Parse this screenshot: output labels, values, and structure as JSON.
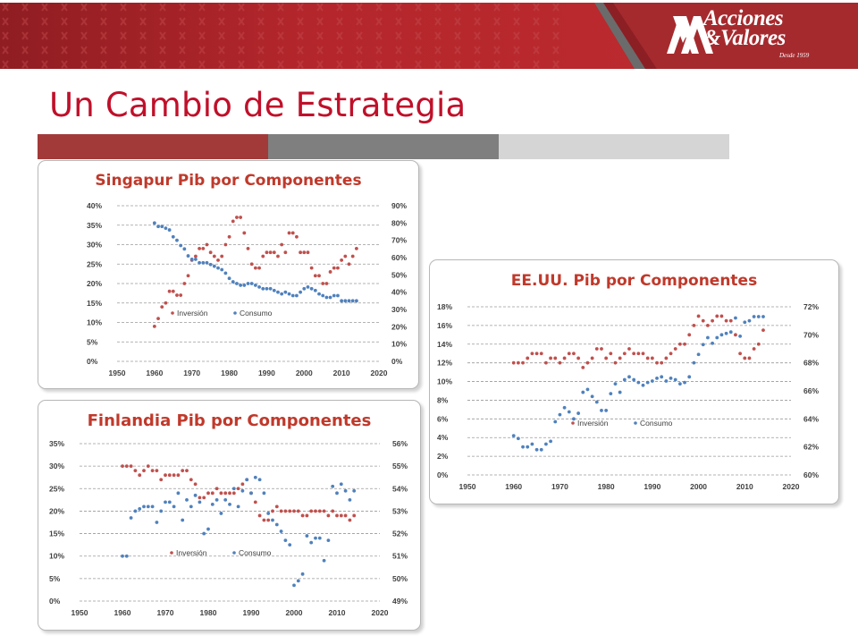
{
  "header": {
    "title": "Un Cambio de Estrategia"
  },
  "brand": {
    "logo_line1": "Acciones",
    "logo_line2": "&Valores",
    "logo_tagline": "Desde 1959"
  },
  "colors": {
    "title": "#c0102a",
    "banner_dark": "#8f1d22",
    "banner_light": "#bf2c30",
    "strip_1": "#a33a3a",
    "strip_2": "#7f7f7f",
    "strip_3": "#d5d5d5",
    "chart_title": "#c0392b",
    "inversion": "#c0504d",
    "consumo": "#4f81bd"
  },
  "chart_data": [
    {
      "id": "singapur",
      "type": "scatter",
      "title": "Singapur Pib por Componentes",
      "x_range": [
        1950,
        2020
      ],
      "x_ticks": [
        1950,
        1960,
        1970,
        1980,
        1990,
        2000,
        2010,
        2020
      ],
      "y_left": {
        "range": [
          0,
          40
        ],
        "ticks": [
          0,
          5,
          10,
          15,
          20,
          25,
          30,
          35,
          40
        ],
        "tick_labels": [
          "0%",
          "5%",
          "10%",
          "15%",
          "20%",
          "25%",
          "30%",
          "35%",
          "40%"
        ]
      },
      "y_right": {
        "range": [
          0,
          90
        ],
        "ticks": [
          0,
          10,
          20,
          30,
          40,
          50,
          60,
          70,
          80,
          90
        ],
        "tick_labels": [
          "0%",
          "10%",
          "20%",
          "30%",
          "40%",
          "50%",
          "60%",
          "70%",
          "80%",
          "90%"
        ]
      },
      "grid": true,
      "legend": "center",
      "series": [
        {
          "name": "Inversión",
          "axis": "left",
          "color": "#c0504d",
          "x": [
            1960,
            1961,
            1962,
            1963,
            1964,
            1965,
            1966,
            1967,
            1968,
            1969,
            1970,
            1971,
            1972,
            1973,
            1974,
            1975,
            1976,
            1977,
            1978,
            1979,
            1980,
            1981,
            1982,
            1983,
            1984,
            1985,
            1986,
            1987,
            1988,
            1989,
            1990,
            1991,
            1992,
            1993,
            1994,
            1995,
            1996,
            1997,
            1998,
            1999,
            2000,
            2001,
            2002,
            2003,
            2004,
            2005,
            2006,
            2007,
            2008,
            2009,
            2010,
            2011,
            2012,
            2013,
            2014
          ],
          "y": [
            9,
            11,
            14,
            15,
            18,
            18,
            17,
            17,
            20,
            22,
            26,
            27,
            29,
            29,
            30,
            28,
            27,
            26,
            27,
            30,
            32,
            36,
            37,
            37,
            33,
            29,
            25,
            24,
            24,
            27,
            28,
            28,
            28,
            27,
            30,
            28,
            33,
            33,
            32,
            28,
            28,
            28,
            24,
            22,
            22,
            20,
            20,
            23,
            24,
            24,
            26,
            27,
            25,
            27,
            29
          ]
        },
        {
          "name": "Consumo",
          "axis": "right",
          "color": "#4f81bd",
          "x": [
            1960,
            1961,
            1962,
            1963,
            1964,
            1965,
            1966,
            1967,
            1968,
            1969,
            1970,
            1971,
            1972,
            1973,
            1974,
            1975,
            1976,
            1977,
            1978,
            1979,
            1980,
            1981,
            1982,
            1983,
            1984,
            1985,
            1986,
            1987,
            1988,
            1989,
            1990,
            1991,
            1992,
            1993,
            1994,
            1995,
            1996,
            1997,
            1998,
            1999,
            2000,
            2001,
            2002,
            2003,
            2004,
            2005,
            2006,
            2007,
            2008,
            2009,
            2010,
            2011,
            2012,
            2013,
            2014
          ],
          "y": [
            80,
            78,
            78,
            77,
            76,
            72,
            70,
            67,
            65,
            61,
            59,
            59,
            57,
            57,
            57,
            56,
            55,
            54,
            53,
            51,
            48,
            46,
            45,
            44,
            44,
            45,
            45,
            44,
            43,
            42,
            42,
            42,
            41,
            40,
            39,
            40,
            39,
            38,
            38,
            40,
            42,
            43,
            42,
            41,
            39,
            38,
            37,
            37,
            38,
            38,
            35,
            35,
            35,
            35,
            35
          ]
        }
      ]
    },
    {
      "id": "finlandia",
      "type": "scatter",
      "title": "Finlandia Pib por Componentes",
      "x_range": [
        1950,
        2020
      ],
      "x_ticks": [
        1950,
        1960,
        1970,
        1980,
        1990,
        2000,
        2010,
        2020
      ],
      "y_left": {
        "range": [
          0,
          35
        ],
        "ticks": [
          0,
          5,
          10,
          15,
          20,
          25,
          30,
          35
        ],
        "tick_labels": [
          "0%",
          "5%",
          "10%",
          "15%",
          "20%",
          "25%",
          "30%",
          "35%"
        ]
      },
      "y_right": {
        "range": [
          49,
          56
        ],
        "ticks": [
          49,
          50,
          51,
          52,
          53,
          54,
          55,
          56
        ],
        "tick_labels": [
          "49%",
          "50%",
          "51%",
          "52%",
          "53%",
          "54%",
          "55%",
          "56%"
        ]
      },
      "grid": true,
      "legend": "center",
      "series": [
        {
          "name": "Inversión",
          "axis": "left",
          "color": "#c0504d",
          "x": [
            1960,
            1961,
            1962,
            1963,
            1964,
            1965,
            1966,
            1967,
            1968,
            1969,
            1970,
            1971,
            1972,
            1973,
            1974,
            1975,
            1976,
            1977,
            1978,
            1979,
            1980,
            1981,
            1982,
            1983,
            1984,
            1985,
            1986,
            1987,
            1988,
            1989,
            1990,
            1991,
            1992,
            1993,
            1994,
            1995,
            1996,
            1997,
            1998,
            1999,
            2000,
            2001,
            2002,
            2003,
            2004,
            2005,
            2006,
            2007,
            2008,
            2009,
            2010,
            2011,
            2012,
            2013,
            2014
          ],
          "y": [
            30,
            30,
            30,
            29,
            28,
            29,
            30,
            29,
            29,
            27,
            28,
            28,
            28,
            28,
            29,
            29,
            27,
            26,
            23,
            23,
            24,
            24,
            25,
            24,
            24,
            24,
            24,
            25,
            26,
            27,
            24,
            22,
            19,
            18,
            18,
            20,
            21,
            20,
            20,
            20,
            20,
            20,
            19,
            19,
            20,
            20,
            20,
            20,
            19,
            20,
            19,
            19,
            19,
            18,
            19
          ]
        },
        {
          "name": "Consumo",
          "axis": "right",
          "color": "#4f81bd",
          "x": [
            1960,
            1961,
            1962,
            1963,
            1964,
            1965,
            1966,
            1967,
            1968,
            1969,
            1970,
            1971,
            1972,
            1973,
            1974,
            1975,
            1976,
            1977,
            1978,
            1979,
            1980,
            1981,
            1982,
            1983,
            1984,
            1985,
            1986,
            1987,
            1988,
            1989,
            1990,
            1991,
            1992,
            1993,
            1994,
            1995,
            1996,
            1997,
            1998,
            1999,
            2000,
            2001,
            2002,
            2003,
            2004,
            2005,
            2006,
            2007,
            2008,
            2009,
            2010,
            2011,
            2012,
            2013,
            2014
          ],
          "y": [
            51.0,
            51.0,
            52.7,
            53.0,
            53.1,
            53.2,
            53.2,
            53.2,
            52.5,
            53.0,
            53.4,
            53.4,
            53.2,
            53.8,
            52.6,
            53.5,
            53.2,
            53.7,
            53.4,
            52.0,
            52.2,
            53.3,
            53.5,
            52.9,
            53.5,
            53.3,
            54.0,
            53.2,
            53.9,
            54.4,
            53.8,
            54.5,
            54.4,
            53.8,
            52.9,
            52.6,
            52.4,
            52.1,
            51.7,
            51.5,
            49.7,
            49.9,
            50.2,
            51.9,
            51.6,
            51.8,
            51.8,
            50.8,
            51.7,
            54.1,
            53.8,
            54.2,
            53.9,
            53.5,
            53.9
          ]
        }
      ]
    },
    {
      "id": "eeuu",
      "type": "scatter",
      "title": "EE.UU. Pib por Componentes",
      "x_range": [
        1950,
        2020
      ],
      "x_ticks": [
        1950,
        1960,
        1970,
        1980,
        1990,
        2000,
        2010,
        2020
      ],
      "y_left": {
        "range": [
          0,
          18
        ],
        "ticks": [
          0,
          2,
          4,
          6,
          8,
          10,
          12,
          14,
          16,
          18
        ],
        "tick_labels": [
          "0%",
          "2%",
          "4%",
          "6%",
          "8%",
          "10%",
          "12%",
          "14%",
          "16%",
          "18%"
        ]
      },
      "y_right": {
        "range": [
          60,
          72
        ],
        "ticks": [
          60,
          62,
          64,
          66,
          68,
          70,
          72
        ],
        "tick_labels": [
          "60%",
          "62%",
          "64%",
          "66%",
          "68%",
          "70%",
          "72%"
        ]
      },
      "grid": true,
      "legend": "center",
      "series": [
        {
          "name": "Inversión",
          "axis": "left",
          "color": "#c0504d",
          "x": [
            1960,
            1961,
            1962,
            1963,
            1964,
            1965,
            1966,
            1967,
            1968,
            1969,
            1970,
            1971,
            1972,
            1973,
            1974,
            1975,
            1976,
            1977,
            1978,
            1979,
            1980,
            1981,
            1982,
            1983,
            1984,
            1985,
            1986,
            1987,
            1988,
            1989,
            1990,
            1991,
            1992,
            1993,
            1994,
            1995,
            1996,
            1997,
            1998,
            1999,
            2000,
            2001,
            2002,
            2003,
            2004,
            2005,
            2006,
            2007,
            2008,
            2009,
            2010,
            2011,
            2012,
            2013,
            2014
          ],
          "y": [
            12,
            12,
            12,
            12.5,
            13,
            13,
            13,
            12,
            12.5,
            12.5,
            12,
            12.5,
            13,
            13,
            12.5,
            11.5,
            12,
            12.5,
            13.5,
            13.5,
            12.5,
            13,
            12,
            12.5,
            13,
            13.5,
            13,
            13,
            13,
            12.5,
            12.5,
            12,
            12,
            12.5,
            13,
            13.5,
            14,
            14,
            15,
            16,
            17,
            16.5,
            16,
            16.5,
            17,
            17,
            16.5,
            16.5,
            15,
            13,
            12.5,
            12.5,
            13.5,
            14,
            15.5
          ]
        },
        {
          "name": "Consumo",
          "axis": "right",
          "color": "#4f81bd",
          "x": [
            1960,
            1961,
            1962,
            1963,
            1964,
            1965,
            1966,
            1967,
            1968,
            1969,
            1970,
            1971,
            1972,
            1973,
            1974,
            1975,
            1976,
            1977,
            1978,
            1979,
            1980,
            1981,
            1982,
            1983,
            1984,
            1985,
            1986,
            1987,
            1988,
            1989,
            1990,
            1991,
            1992,
            1993,
            1994,
            1995,
            1996,
            1997,
            1998,
            1999,
            2000,
            2001,
            2002,
            2003,
            2004,
            2005,
            2006,
            2007,
            2008,
            2009,
            2010,
            2011,
            2012,
            2013,
            2014
          ],
          "y": [
            62.8,
            62.6,
            62.0,
            62.0,
            62.2,
            61.8,
            61.8,
            62.2,
            62.4,
            63.8,
            64.3,
            64.8,
            64.5,
            64.0,
            64.4,
            65.9,
            66.1,
            65.6,
            65.2,
            64.6,
            64.6,
            65.8,
            66.5,
            65.9,
            66.8,
            67.0,
            66.8,
            66.6,
            66.4,
            66.6,
            66.7,
            66.9,
            67.0,
            66.7,
            66.9,
            66.8,
            66.5,
            66.6,
            67.0,
            68.0,
            68.6,
            69.3,
            69.8,
            69.4,
            69.8,
            70.0,
            70.1,
            70.2,
            71.2,
            69.9,
            70.9,
            71.0,
            71.3,
            71.3,
            71.3
          ]
        }
      ]
    }
  ]
}
